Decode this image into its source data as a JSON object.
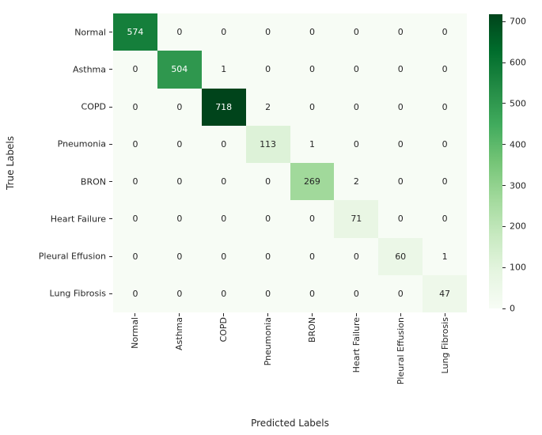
{
  "chart_data": {
    "type": "heatmap",
    "title": "",
    "xlabel": "Predicted Labels",
    "ylabel": "True Labels",
    "categories": [
      "Normal",
      "Asthma",
      "COPD",
      "Pneumonia",
      "BRON",
      "Heart Failure",
      "Pleural Effusion",
      "Lung Fibrosis"
    ],
    "matrix": [
      [
        574,
        0,
        0,
        0,
        0,
        0,
        0,
        0
      ],
      [
        0,
        504,
        1,
        0,
        0,
        0,
        0,
        0
      ],
      [
        0,
        0,
        718,
        2,
        0,
        0,
        0,
        0
      ],
      [
        0,
        0,
        0,
        113,
        1,
        0,
        0,
        0
      ],
      [
        0,
        0,
        0,
        0,
        269,
        2,
        0,
        0
      ],
      [
        0,
        0,
        0,
        0,
        0,
        71,
        0,
        0
      ],
      [
        0,
        0,
        0,
        0,
        0,
        0,
        60,
        1
      ],
      [
        0,
        0,
        0,
        0,
        0,
        0,
        0,
        47
      ]
    ],
    "vmin": 0,
    "vmax": 718,
    "grid": false,
    "legend_position": "none",
    "colorbar": {
      "ticks": [
        0,
        100,
        200,
        300,
        400,
        500,
        600,
        700
      ],
      "position": "right"
    },
    "colormap": {
      "name": "Greens",
      "anchors": [
        "#f7fcf5",
        "#e5f5e0",
        "#c7e9c0",
        "#a1d99b",
        "#74c476",
        "#41ab5d",
        "#238b45",
        "#006d2c",
        "#00441b"
      ]
    },
    "annot_color_dark": "#262626",
    "annot_color_light": "#ffffff",
    "tick_color": "#262626",
    "background_color": "#ffffff"
  }
}
